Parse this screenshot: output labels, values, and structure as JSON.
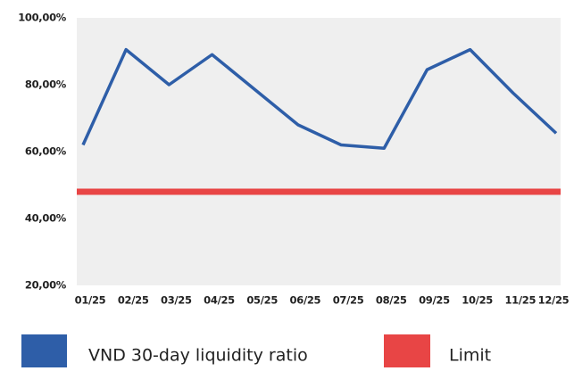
{
  "chart_data": {
    "type": "line",
    "categories": [
      "01/25",
      "02/25",
      "03/25",
      "04/25",
      "05/25",
      "06/25",
      "07/25",
      "08/25",
      "09/25",
      "10/25",
      "11/25",
      "12/25"
    ],
    "series": [
      {
        "name": "VND 30-day liquidity ratio",
        "color": "#2e5ea8",
        "values": [
          62,
          90.5,
          80,
          89,
          78.5,
          68,
          62,
          61,
          84.5,
          90.5,
          77.5,
          65.5
        ]
      }
    ],
    "limit": {
      "name": "Limit",
      "color": "#e84545",
      "value": 48
    },
    "ylim": [
      20,
      100
    ],
    "yticks": [
      {
        "value": 20,
        "label": "20,00%"
      },
      {
        "value": 40,
        "label": "40,00%"
      },
      {
        "value": 60,
        "label": "60,00%"
      },
      {
        "value": 80,
        "label": "80,00%"
      },
      {
        "value": 100,
        "label": "100,00%"
      }
    ]
  }
}
